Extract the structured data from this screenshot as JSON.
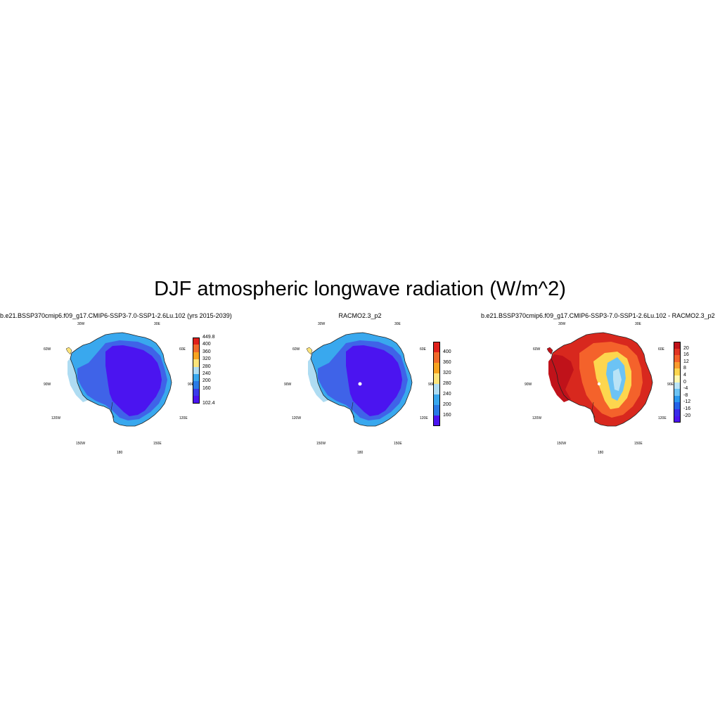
{
  "figure": {
    "title": "DJF atmospheric longwave radiation (W/m^2)"
  },
  "panels": [
    {
      "title": "b.e21.BSSP370cmip6.f09_g17.CMIP6-SSP3-7.0-SSP1-2.6Lu.102 (yrs 2015-2039)",
      "style": "cool",
      "colorbar": {
        "labels": [
          "449.8",
          "400",
          "360",
          "320",
          "280",
          "240",
          "200",
          "160",
          "102.4"
        ],
        "colors": [
          "#e0201b",
          "#f06a2a",
          "#f7a31f",
          "#fce37a",
          "#aedcf2",
          "#39a8ee",
          "#2a7be6",
          "#3a3bea",
          "#4b14f0"
        ]
      }
    },
    {
      "title": "RACMO2.3_p2",
      "style": "cool",
      "colorbar": {
        "labels": [
          "400",
          "360",
          "320",
          "280",
          "240",
          "200",
          "160"
        ],
        "colors": [
          "#e0201b",
          "#f06a2a",
          "#f7a31f",
          "#fce37a",
          "#aedcf2",
          "#39a8ee",
          "#2a7be6",
          "#4b14f0"
        ]
      }
    },
    {
      "title": "b.e21.BSSP370cmip6.f09_g17.CMIP6-SSP3-7.0-SSP1-2.6Lu.102 - RACMO2.3_p2",
      "style": "warm",
      "colorbar": {
        "labels": [
          "20",
          "16",
          "12",
          "8",
          "4",
          "0",
          "-4",
          "-8",
          "-12",
          "-16",
          "-20"
        ],
        "colors": [
          "#c0121a",
          "#e23524",
          "#f4622b",
          "#f99b2e",
          "#fdd64e",
          "#fff8b0",
          "#b9e3f6",
          "#6cc3f4",
          "#2a99ef",
          "#2462e8",
          "#3a2ce9",
          "#4b14f0"
        ]
      }
    }
  ],
  "lon_labels": {
    "w30": "30W",
    "e30": "30E",
    "w60": "60W",
    "e60": "60E",
    "w90": "90W",
    "e90": "90E",
    "w120": "120W",
    "e120": "120E",
    "w150": "150W",
    "e150": "150E",
    "s180": "180"
  }
}
